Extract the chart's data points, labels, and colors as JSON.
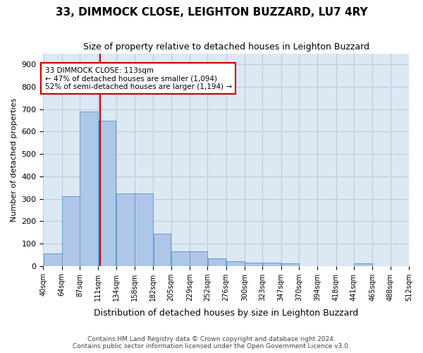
{
  "title": "33, DIMMOCK CLOSE, LEIGHTON BUZZARD, LU7 4RY",
  "subtitle": "Size of property relative to detached houses in Leighton Buzzard",
  "xlabel": "Distribution of detached houses by size in Leighton Buzzard",
  "ylabel": "Number of detached properties",
  "footer_line1": "Contains HM Land Registry data © Crown copyright and database right 2024.",
  "footer_line2": "Contains public sector information licensed under the Open Government Licence v3.0.",
  "annotation_title": "33 DIMMOCK CLOSE: 113sqm",
  "annotation_line1": "← 47% of detached houses are smaller (1,094)",
  "annotation_line2": "52% of semi-detached houses are larger (1,194) →",
  "property_size": 113,
  "bar_edges": [
    40,
    64,
    87,
    111,
    134,
    158,
    182,
    205,
    229,
    252,
    276,
    300,
    323,
    347,
    370,
    394,
    418,
    441,
    465,
    488,
    512
  ],
  "bar_heights": [
    55,
    310,
    690,
    650,
    325,
    325,
    145,
    65,
    65,
    35,
    20,
    15,
    15,
    10,
    0,
    0,
    0,
    10,
    0,
    0
  ],
  "bar_color": "#aec6e8",
  "bar_edge_color": "#5a9fd4",
  "highlight_line_color": "#cc0000",
  "annotation_box_color": "#cc0000",
  "grid_color": "#c0c8d8",
  "bg_color": "#dde8f5",
  "ylim": [
    0,
    950
  ],
  "yticks": [
    0,
    100,
    200,
    300,
    400,
    500,
    600,
    700,
    800,
    900
  ]
}
